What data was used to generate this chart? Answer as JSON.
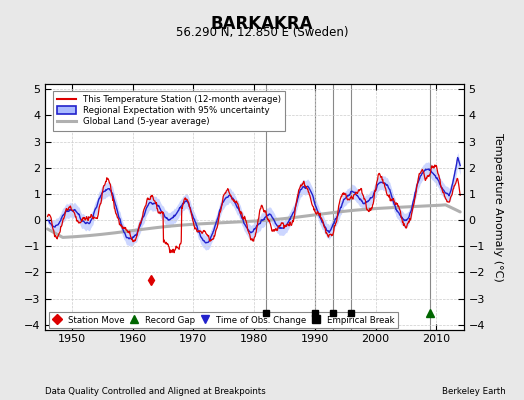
{
  "title": "BARKAKRA",
  "subtitle": "56.290 N, 12.850 E (Sweden)",
  "ylabel": "Temperature Anomaly (°C)",
  "ylim": [
    -4.2,
    5.2
  ],
  "xlim": [
    1945.5,
    2014.5
  ],
  "yticks": [
    -4,
    -3,
    -2,
    -1,
    0,
    1,
    2,
    3,
    4,
    5
  ],
  "xticks": [
    1950,
    1960,
    1970,
    1980,
    1990,
    2000,
    2010
  ],
  "bg_color": "#e8e8e8",
  "plot_bg_color": "#ffffff",
  "station_color": "#dd0000",
  "regional_color": "#2222cc",
  "regional_fill_color": "#aabbff",
  "global_color": "#b0b0b0",
  "empirical_breaks": [
    1982,
    1990,
    1993,
    1996
  ],
  "record_gap_years": [
    2009
  ],
  "station_move_years": [
    1963
  ],
  "time_obs_years": [],
  "footnote_left": "Data Quality Controlled and Aligned at Breakpoints",
  "footnote_right": "Berkeley Earth"
}
